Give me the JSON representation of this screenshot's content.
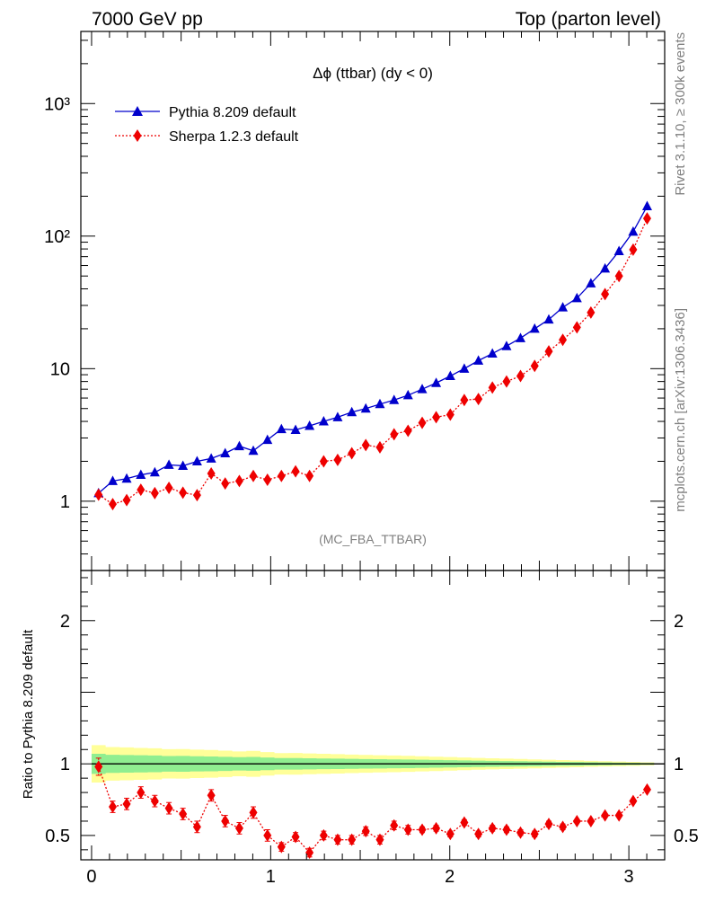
{
  "header": {
    "left": "7000 GeV pp",
    "right": "Top (parton level)"
  },
  "side": {
    "rivet": "Rivet 3.1.10, ≥ 300k events",
    "mcplots": "mcplots.cern.ch [arXiv:1306.3436]"
  },
  "watermark": "(MC_FBA_TTBAR)",
  "chart_data": [
    {
      "type": "line",
      "title": "Δϕ (ttbar) (dy < 0)",
      "yscale": "log",
      "ylim": [
        0.3,
        3500
      ],
      "xlim": [
        -0.06,
        3.2
      ],
      "yticks": [
        {
          "label": "1",
          "value": 1
        },
        {
          "label": "10",
          "value": 10
        },
        {
          "label": "10²",
          "value": 100
        },
        {
          "label": "10³",
          "value": 1000
        }
      ],
      "legend_position": "top-left",
      "series": [
        {
          "name": "Pythia 8.209 default",
          "color": "#0000cc",
          "marker": "triangle",
          "x": [
            0.039,
            0.118,
            0.196,
            0.275,
            0.353,
            0.432,
            0.51,
            0.589,
            0.668,
            0.746,
            0.825,
            0.903,
            0.982,
            1.06,
            1.139,
            1.217,
            1.296,
            1.374,
            1.453,
            1.531,
            1.61,
            1.689,
            1.767,
            1.846,
            1.924,
            2.003,
            2.081,
            2.16,
            2.238,
            2.317,
            2.395,
            2.474,
            2.553,
            2.631,
            2.71,
            2.788,
            2.867,
            2.945,
            3.024,
            3.102
          ],
          "y": [
            1.15,
            1.42,
            1.48,
            1.58,
            1.65,
            1.88,
            1.85,
            2.0,
            2.1,
            2.3,
            2.6,
            2.4,
            2.9,
            3.5,
            3.45,
            3.7,
            4.0,
            4.3,
            4.7,
            5.0,
            5.4,
            5.8,
            6.3,
            7.0,
            7.8,
            8.8,
            10.0,
            11.5,
            13.0,
            14.8,
            17.0,
            20.0,
            23.5,
            29.0,
            34.0,
            44.0,
            57.0,
            77.0,
            108.0,
            168.0
          ]
        },
        {
          "name": "Sherpa 1.2.3 default",
          "color": "#ee0000",
          "marker": "diamond",
          "x": [
            0.039,
            0.118,
            0.196,
            0.275,
            0.353,
            0.432,
            0.51,
            0.589,
            0.668,
            0.746,
            0.825,
            0.903,
            0.982,
            1.06,
            1.139,
            1.217,
            1.296,
            1.374,
            1.453,
            1.531,
            1.61,
            1.689,
            1.767,
            1.846,
            1.924,
            2.003,
            2.081,
            2.16,
            2.238,
            2.317,
            2.395,
            2.474,
            2.553,
            2.631,
            2.71,
            2.788,
            2.867,
            2.945,
            3.024,
            3.102
          ],
          "y": [
            1.12,
            0.95,
            1.02,
            1.22,
            1.15,
            1.26,
            1.16,
            1.11,
            1.62,
            1.36,
            1.42,
            1.55,
            1.45,
            1.55,
            1.68,
            1.55,
            2.0,
            2.05,
            2.3,
            2.65,
            2.55,
            3.2,
            3.4,
            3.9,
            4.3,
            4.5,
            5.8,
            5.9,
            7.2,
            8.0,
            8.8,
            10.5,
            13.5,
            16.5,
            20.5,
            26.5,
            36.5,
            50.0,
            79.0,
            136.0
          ]
        }
      ]
    },
    {
      "type": "line",
      "ylabel": "Ratio to Pythia 8.209 default",
      "ylim": [
        0.33,
        2.35
      ],
      "xlim": [
        -0.06,
        3.2
      ],
      "yticks": [
        0.5,
        1,
        2
      ],
      "xticks": [
        0,
        1,
        2,
        3
      ],
      "band_inner_color": "#90ee90",
      "band_outer_color": "#ffff99",
      "reference_line": 1,
      "series": [
        {
          "name": "Sherpa 1.2.3 default",
          "color": "#ee0000",
          "marker": "diamond",
          "x": [
            0.039,
            0.118,
            0.196,
            0.275,
            0.353,
            0.432,
            0.51,
            0.589,
            0.668,
            0.746,
            0.825,
            0.903,
            0.982,
            1.06,
            1.139,
            1.217,
            1.296,
            1.374,
            1.453,
            1.531,
            1.61,
            1.689,
            1.767,
            1.846,
            1.924,
            2.003,
            2.081,
            2.16,
            2.238,
            2.317,
            2.395,
            2.474,
            2.553,
            2.631,
            2.71,
            2.788,
            2.867,
            2.945,
            3.024,
            3.102
          ],
          "y": [
            0.98,
            0.7,
            0.72,
            0.8,
            0.74,
            0.69,
            0.65,
            0.56,
            0.78,
            0.6,
            0.55,
            0.66,
            0.5,
            0.42,
            0.49,
            0.38,
            0.5,
            0.47,
            0.47,
            0.53,
            0.47,
            0.57,
            0.54,
            0.54,
            0.55,
            0.51,
            0.59,
            0.51,
            0.55,
            0.54,
            0.52,
            0.51,
            0.58,
            0.56,
            0.6,
            0.6,
            0.64,
            0.64,
            0.74,
            0.82
          ],
          "yerr": [
            0.06,
            0.04,
            0.04,
            0.04,
            0.04,
            0.04,
            0.04,
            0.04,
            0.04,
            0.04,
            0.04,
            0.04,
            0.04,
            0.03,
            0.03,
            0.03,
            0.03,
            0.03,
            0.03,
            0.03,
            0.03,
            0.03,
            0.03,
            0.02,
            0.02,
            0.02,
            0.02,
            0.02,
            0.02,
            0.02,
            0.02,
            0.02,
            0.02,
            0.02,
            0.01,
            0.01,
            0.01,
            0.01,
            0.01,
            0.01
          ]
        }
      ]
    }
  ]
}
